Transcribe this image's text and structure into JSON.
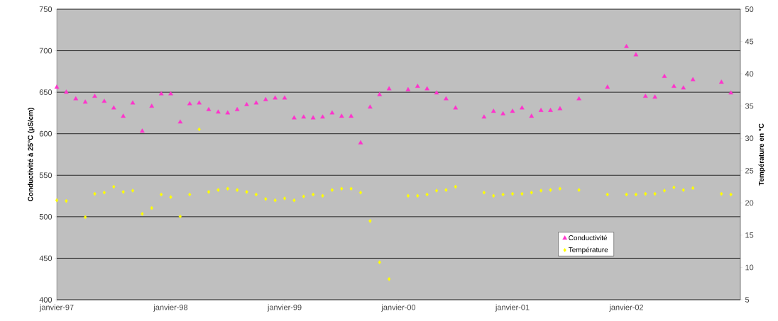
{
  "chart_data": {
    "type": "scatter",
    "ylabel": "Conductivité à 25°C (µS/cm)",
    "y2label": "Température en °C",
    "x": [
      "1997-01",
      "1997-02",
      "1997-03",
      "1997-04",
      "1997-05",
      "1997-06",
      "1997-07",
      "1997-08",
      "1997-09",
      "1997-10",
      "1997-11",
      "1997-12",
      "1998-01",
      "1998-02",
      "1998-03",
      "1998-04",
      "1998-05",
      "1998-06",
      "1998-07",
      "1998-08",
      "1998-09",
      "1998-10",
      "1998-11",
      "1998-12",
      "1999-01",
      "1999-02",
      "1999-03",
      "1999-04",
      "1999-05",
      "1999-06",
      "1999-07",
      "1999-08",
      "1999-09",
      "1999-10",
      "1999-11",
      "1999-12",
      "2000-02",
      "2000-03",
      "2000-04",
      "2000-05",
      "2000-06",
      "2000-07",
      "2000-10",
      "2000-11",
      "2000-12",
      "2001-01",
      "2001-02",
      "2001-03",
      "2001-04",
      "2001-05",
      "2001-06",
      "2001-08",
      "2001-11",
      "2002-01",
      "2002-02",
      "2002-03",
      "2002-04",
      "2002-05",
      "2002-06",
      "2002-07",
      "2002-08",
      "2002-11",
      "2002-12"
    ],
    "series": [
      {
        "name": "Conductivité",
        "color": "#ff33cc",
        "marker": "triangle",
        "values": [
          656,
          650,
          642,
          638,
          645,
          639,
          631,
          621,
          637,
          603,
          633,
          648,
          648,
          614,
          636,
          637,
          629,
          626,
          625,
          629,
          635,
          637,
          641,
          643,
          643,
          619,
          620,
          619,
          620,
          625,
          621,
          621,
          589,
          632,
          647,
          654,
          653,
          657,
          654,
          649,
          642,
          631,
          620,
          627,
          624,
          627,
          631,
          621,
          628,
          628,
          630,
          642,
          656,
          705,
          695,
          645,
          644,
          669,
          657,
          655,
          665,
          662,
          649
        ]
      },
      {
        "name": "Température",
        "color": "#ffff00",
        "marker": "diamond",
        "axis": "y2",
        "values": [
          20.4,
          20.3,
          null,
          17.8,
          21.4,
          21.6,
          22.5,
          21.7,
          21.9,
          18.3,
          19.2,
          21.3,
          20.9,
          17.9,
          21.3,
          31.4,
          21.7,
          22.0,
          22.2,
          22.0,
          21.7,
          21.3,
          20.6,
          20.4,
          20.7,
          20.4,
          21.0,
          21.3,
          21.1,
          22.0,
          22.2,
          22.2,
          21.6,
          17.2,
          10.8,
          8.2,
          21.1,
          21.1,
          21.3,
          21.9,
          22.0,
          22.5,
          21.6,
          21.1,
          21.3,
          21.4,
          21.4,
          21.6,
          21.9,
          22.0,
          22.2,
          22.0,
          21.3,
          21.3,
          21.3,
          21.4,
          21.4,
          21.9,
          22.4,
          22.0,
          22.3,
          21.4,
          21.3
        ]
      }
    ],
    "xlim": [
      "1997-01",
      "2003-01"
    ],
    "xticks": [
      {
        "value": "1997-01",
        "label": "janvier-97"
      },
      {
        "value": "1998-01",
        "label": "janvier-98"
      },
      {
        "value": "1999-01",
        "label": "janvier-99"
      },
      {
        "value": "2000-01",
        "label": "janvier-00"
      },
      {
        "value": "2001-01",
        "label": "janvier-01"
      },
      {
        "value": "2002-01",
        "label": "janvier-02"
      }
    ],
    "ylim": [
      400,
      750
    ],
    "yticks": [
      400,
      450,
      500,
      550,
      600,
      650,
      700,
      750
    ],
    "y2lim": [
      5,
      50
    ],
    "y2ticks": [
      5,
      10,
      15,
      20,
      25,
      30,
      35,
      40,
      45,
      50
    ],
    "grid": "y",
    "legend": "bottom right"
  }
}
